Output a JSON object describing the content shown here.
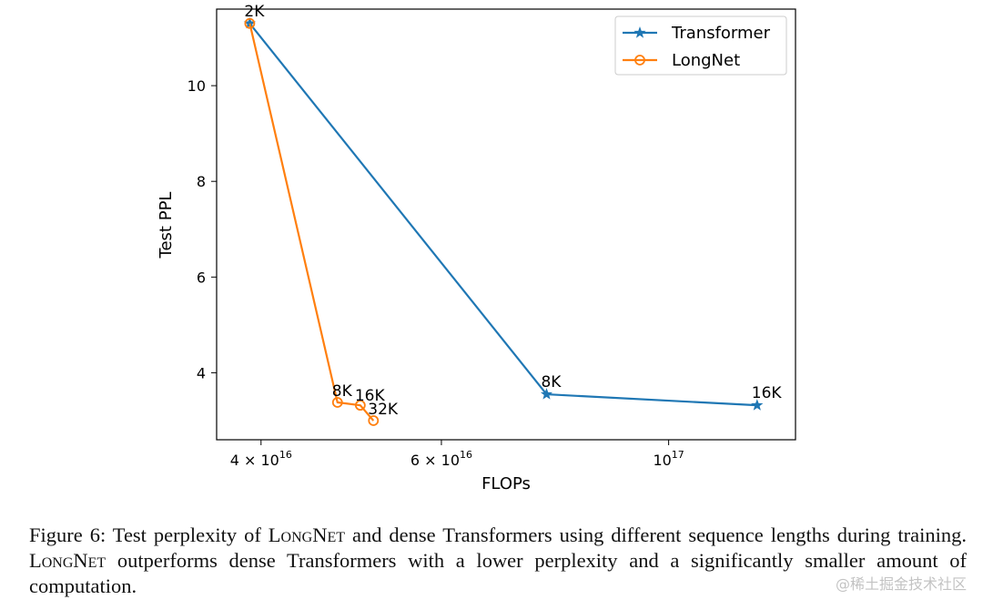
{
  "chart_data": {
    "type": "line",
    "xlabel": "FLOPs",
    "ylabel": "Test PPL",
    "x_scale": "log",
    "xlim": [
      3.62e+16,
      1.33e+17
    ],
    "ylim": [
      2.6,
      11.6
    ],
    "x_ticks": [
      {
        "value": 4e+16,
        "label": "4 × 10",
        "exp": "16"
      },
      {
        "value": 6e+16,
        "label": "6 × 10",
        "exp": "16"
      },
      {
        "value": 1e+17,
        "label": "10",
        "exp": "17"
      }
    ],
    "y_ticks": [
      4,
      6,
      8,
      10
    ],
    "grid": false,
    "legend_position": "upper right",
    "series": [
      {
        "name": "Transformer",
        "color": "#1f77b4",
        "marker": "star",
        "x": [
          3.9e+16,
          7.6e+16,
          1.22e+17
        ],
        "y": [
          11.3,
          3.55,
          3.32
        ],
        "point_labels": [
          "2K",
          "8K",
          "16K"
        ]
      },
      {
        "name": "LongNet",
        "color": "#ff7f0e",
        "marker": "circle-open",
        "x": [
          3.9e+16,
          4.75e+16,
          5e+16,
          5.15e+16
        ],
        "y": [
          11.3,
          3.38,
          3.32,
          3.0
        ],
        "point_labels": [
          "2K",
          "8K",
          "16K",
          "32K"
        ]
      }
    ]
  },
  "caption": {
    "prefix": "Figure 6: Test perplexity of ",
    "name1": "LongNet",
    "middle": " and dense Transformers using different sequence lengths during training. ",
    "name2": "LongNet",
    "suffix": " outperforms dense Transformers with a lower perplexity and a significantly smaller amount of computation."
  },
  "watermark": "@稀土掘金技术社区"
}
